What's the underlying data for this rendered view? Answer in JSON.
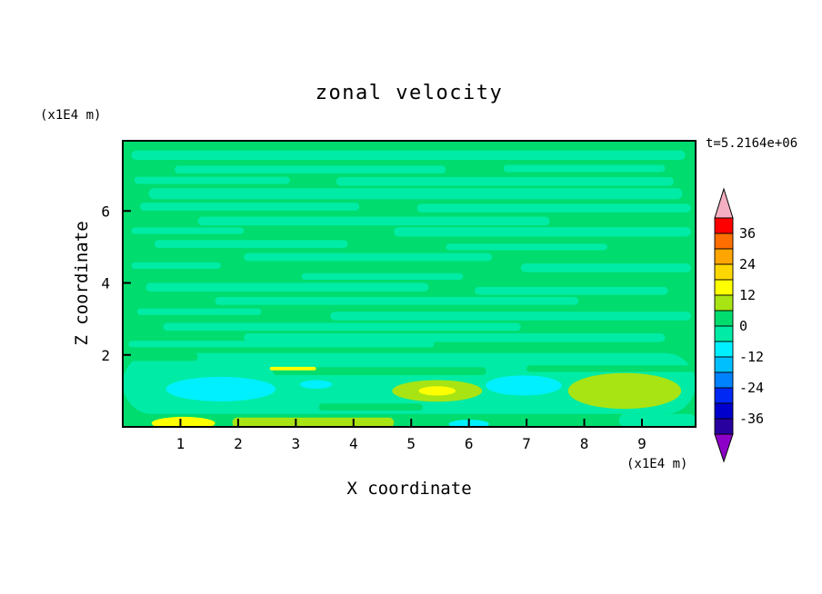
{
  "chart": {
    "title": "zonal velocity",
    "timestamp": "t=5.2164e+06",
    "xlabel": "X coordinate",
    "ylabel": "Z coordinate",
    "x_units": "(x1E4 m)",
    "y_units": "(x1E4 m)"
  },
  "chart_data": {
    "type": "heatmap",
    "subtype": "filled_contour",
    "title": "zonal velocity",
    "timestamp": "t=5.2164e+06",
    "xlabel": "X coordinate",
    "ylabel": "Z coordinate",
    "x_units": "(x1E4 m)",
    "y_units": "(x1E4 m)",
    "xlim": [
      0,
      9.93
    ],
    "zlim": [
      0,
      7.95
    ],
    "x_ticks": [
      1,
      2,
      3,
      4,
      5,
      6,
      7,
      8,
      9
    ],
    "y_ticks": [
      2,
      4,
      6
    ],
    "contour_interval": 6,
    "value_range": [
      -42,
      42
    ],
    "colorbar": {
      "tick_labels": [
        36,
        24,
        12,
        0,
        -12,
        -24,
        -36
      ],
      "over_color": "#F5AFC3",
      "under_color": "#8C00C8",
      "bands": [
        {
          "from": 36,
          "to": 42,
          "color": "#FF0000"
        },
        {
          "from": 30,
          "to": 36,
          "color": "#FF6E00"
        },
        {
          "from": 24,
          "to": 30,
          "color": "#FFA500"
        },
        {
          "from": 18,
          "to": 24,
          "color": "#FFD700"
        },
        {
          "from": 12,
          "to": 18,
          "color": "#FFFF00"
        },
        {
          "from": 6,
          "to": 12,
          "color": "#A8E414"
        },
        {
          "from": 0,
          "to": 6,
          "color": "#00DC6E"
        },
        {
          "from": -6,
          "to": 0,
          "color": "#00EBA5"
        },
        {
          "from": -12,
          "to": -6,
          "color": "#00F0FF"
        },
        {
          "from": -18,
          "to": -12,
          "color": "#00BFFF"
        },
        {
          "from": -24,
          "to": -18,
          "color": "#0082FF"
        },
        {
          "from": -30,
          "to": -24,
          "color": "#0028F5"
        },
        {
          "from": -36,
          "to": -30,
          "color": "#0000CD"
        },
        {
          "from": -42,
          "to": -36,
          "color": "#2800A0"
        }
      ]
    },
    "field": {
      "description": "Mostly values in the 0..6 band (green) with thin horizontal streaks in the -6..0 band (aquamarine); near the bottom boundary layer: cyan (-12..-6) and yellow-green (6..12) patches with small yellow (12..18) spots.",
      "background_value": 3,
      "shape_format": "['s', x0, x1, zCenter, halfHeight, value] for streaks; ['b', cx, cz, rx, rz, value] for blobs (data coordinates)",
      "shapes": [
        [
          "s",
          0.15,
          9.75,
          7.55,
          0.13,
          -3
        ],
        [
          "s",
          0.9,
          5.6,
          7.15,
          0.11,
          -3
        ],
        [
          "s",
          6.6,
          9.4,
          7.18,
          0.1,
          -3
        ],
        [
          "s",
          0.2,
          2.9,
          6.85,
          0.1,
          -3
        ],
        [
          "s",
          3.7,
          9.55,
          6.82,
          0.12,
          -3
        ],
        [
          "s",
          0.45,
          9.7,
          6.48,
          0.15,
          -3
        ],
        [
          "s",
          0.3,
          4.1,
          6.12,
          0.11,
          -3
        ],
        [
          "s",
          5.1,
          9.85,
          6.08,
          0.12,
          -3
        ],
        [
          "s",
          1.3,
          7.4,
          5.72,
          0.12,
          -3
        ],
        [
          "s",
          0.15,
          2.1,
          5.45,
          0.09,
          -3
        ],
        [
          "s",
          4.7,
          9.85,
          5.42,
          0.13,
          -3
        ],
        [
          "s",
          0.55,
          3.9,
          5.08,
          0.11,
          -3
        ],
        [
          "s",
          5.6,
          8.4,
          5.0,
          0.09,
          -3
        ],
        [
          "s",
          2.1,
          6.4,
          4.72,
          0.11,
          -3
        ],
        [
          "s",
          0.15,
          1.7,
          4.48,
          0.09,
          -3
        ],
        [
          "s",
          6.9,
          9.85,
          4.42,
          0.12,
          -3
        ],
        [
          "s",
          3.1,
          5.9,
          4.18,
          0.09,
          -3
        ],
        [
          "s",
          0.4,
          5.3,
          3.88,
          0.12,
          -3
        ],
        [
          "s",
          6.1,
          9.45,
          3.78,
          0.11,
          -3
        ],
        [
          "s",
          1.6,
          7.9,
          3.5,
          0.11,
          -3
        ],
        [
          "s",
          0.25,
          2.4,
          3.2,
          0.09,
          -3
        ],
        [
          "s",
          3.6,
          9.85,
          3.08,
          0.12,
          -3
        ],
        [
          "s",
          0.7,
          6.9,
          2.78,
          0.11,
          -3
        ],
        [
          "s",
          2.1,
          9.4,
          2.48,
          0.12,
          -3
        ],
        [
          "s",
          0.1,
          5.4,
          2.3,
          0.09,
          -3
        ],
        [
          "s",
          0.0,
          9.93,
          1.2,
          0.85,
          -3
        ],
        [
          "s",
          0.0,
          1.3,
          1.95,
          0.12,
          3
        ],
        [
          "s",
          2.6,
          6.3,
          1.55,
          0.11,
          3
        ],
        [
          "s",
          7.0,
          9.93,
          1.62,
          0.09,
          3
        ],
        [
          "s",
          3.4,
          5.2,
          0.55,
          0.1,
          3
        ],
        [
          "s",
          0.0,
          9.93,
          0.16,
          0.2,
          3
        ],
        [
          "b",
          1.7,
          1.05,
          0.95,
          0.34,
          -9
        ],
        [
          "b",
          3.35,
          1.18,
          0.28,
          0.12,
          -9
        ],
        [
          "b",
          5.45,
          1.0,
          0.78,
          0.3,
          9
        ],
        [
          "b",
          5.45,
          1.0,
          0.32,
          0.13,
          15
        ],
        [
          "b",
          6.95,
          1.15,
          0.66,
          0.28,
          -9
        ],
        [
          "b",
          8.7,
          1.0,
          0.98,
          0.5,
          9
        ],
        [
          "s",
          2.55,
          3.35,
          1.62,
          0.05,
          15
        ],
        [
          "b",
          1.05,
          0.1,
          0.55,
          0.18,
          15
        ],
        [
          "s",
          1.9,
          4.7,
          0.12,
          0.14,
          9
        ],
        [
          "s",
          8.6,
          9.93,
          0.18,
          0.18,
          -3
        ],
        [
          "b",
          6.0,
          0.08,
          0.35,
          0.12,
          -9
        ]
      ]
    }
  }
}
